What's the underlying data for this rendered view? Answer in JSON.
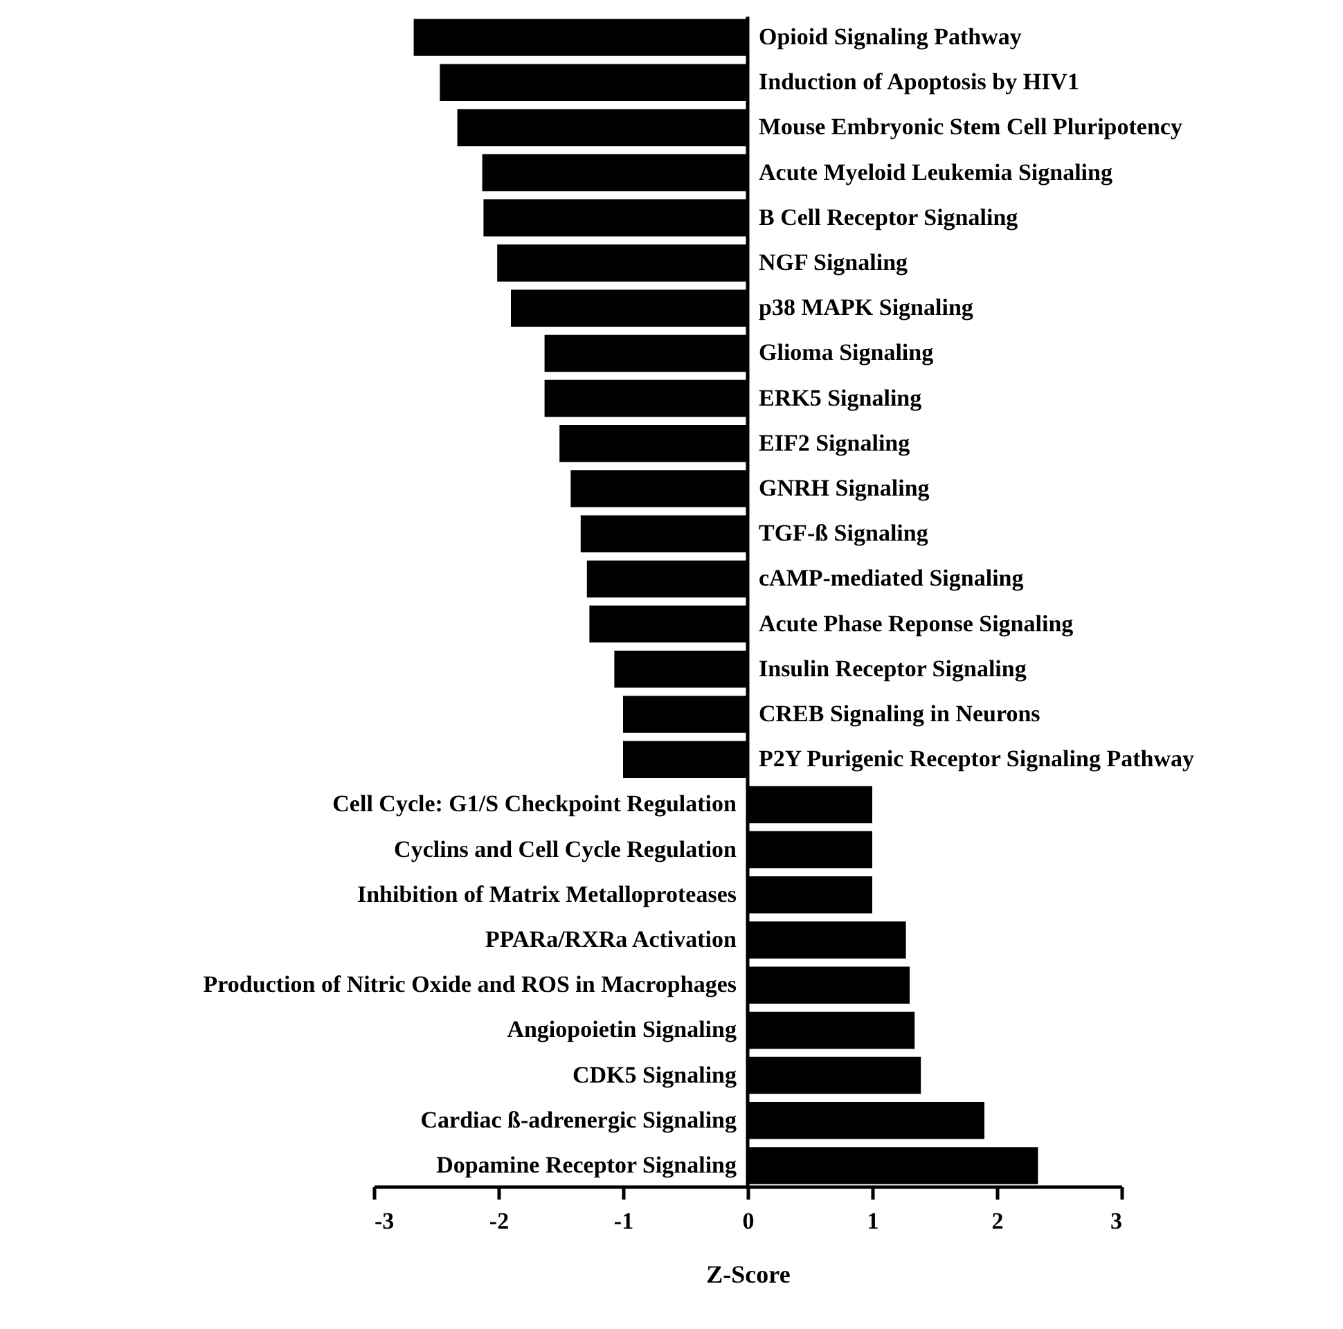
{
  "chart_data": {
    "type": "bar",
    "orientation": "horizontal",
    "xlabel": "Z-Score",
    "color": "#000000",
    "categories": [
      "Opioid Signaling Pathway",
      "Induction of Apoptosis by HIV1",
      "Mouse Embryonic Stem Cell Pluripotency",
      "Acute Myeloid Leukemia Signaling",
      "B Cell Receptor Signaling",
      "NGF Signaling",
      "p38 MAPK Signaling",
      "Glioma Signaling",
      "ERK5 Signaling",
      "EIF2 Signaling",
      "GNRH Signaling",
      "TGF-ß Signaling",
      "cAMP-mediated Signaling",
      "Acute Phase Reponse Signaling",
      "Insulin Receptor Signaling",
      "CREB Signaling in Neurons",
      "P2Y Purigenic Receptor Signaling Pathway",
      "Cell Cycle: G1/S Checkpoint Regulation",
      "Cyclins and Cell Cycle Regulation",
      "Inhibition of Matrix Metalloproteases",
      "PPARa/RXRa Activation",
      "Production of Nitric Oxide and ROS in Macrophages",
      "Angiopoietin Signaling",
      "CDK5 Signaling",
      "Cardiac ß-adrenergic Signaling",
      "Dopamine Receptor Signaling"
    ],
    "values": [
      -2.68,
      -2.47,
      -2.33,
      -2.13,
      -2.12,
      -2.01,
      -1.9,
      -1.63,
      -1.63,
      -1.51,
      -1.42,
      -1.34,
      -1.29,
      -1.27,
      -1.07,
      -1.0,
      -1.0,
      1.0,
      1.0,
      1.0,
      1.27,
      1.3,
      1.34,
      1.39,
      1.9,
      2.33
    ],
    "xlim": [
      -3,
      3
    ],
    "xticks": [
      -3,
      -2,
      -1,
      0,
      1,
      2,
      3
    ]
  }
}
